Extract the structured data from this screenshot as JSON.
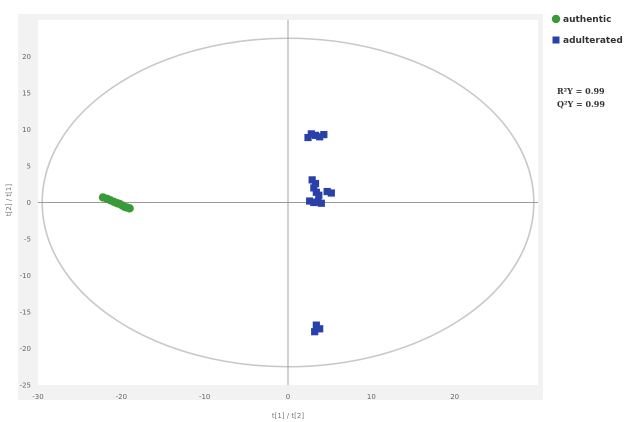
{
  "chart_data": {
    "type": "scatter",
    "title": "",
    "xlabel": "t[1] / t[2]",
    "ylabel": "t[2] / t[1]",
    "xlim": [
      -30,
      30
    ],
    "ylim": [
      -25,
      25
    ],
    "x_ticks": [
      -30,
      -20,
      -10,
      0,
      10,
      20
    ],
    "y_ticks": [
      20,
      15,
      10,
      5,
      0,
      -5,
      -10,
      -15,
      -20,
      -25
    ],
    "grid": false,
    "legend_position": "top-right",
    "hotelling_ellipse": {
      "center": [
        0,
        0
      ],
      "x_radius": 29.5,
      "y_radius": 22.5
    },
    "series": [
      {
        "name": "authentic",
        "marker": "circle",
        "color": "#3a9a3a",
        "points": [
          [
            -22.2,
            0.7
          ],
          [
            -21.7,
            0.5
          ],
          [
            -21.3,
            0.3
          ],
          [
            -20.9,
            0.1
          ],
          [
            -20.5,
            -0.1
          ],
          [
            -20.2,
            -0.2
          ],
          [
            -19.9,
            -0.4
          ],
          [
            -19.6,
            -0.6
          ],
          [
            -19.3,
            -0.7
          ],
          [
            -19.0,
            -0.8
          ]
        ]
      },
      {
        "name": "adulterated",
        "marker": "square",
        "color": "#2840a8",
        "points": [
          [
            2.4,
            8.9
          ],
          [
            2.8,
            9.4
          ],
          [
            3.3,
            9.2
          ],
          [
            3.8,
            9.0
          ],
          [
            4.3,
            9.3
          ],
          [
            2.9,
            3.1
          ],
          [
            3.3,
            2.6
          ],
          [
            3.1,
            2.0
          ],
          [
            3.4,
            1.4
          ],
          [
            3.7,
            1.0
          ],
          [
            4.7,
            1.5
          ],
          [
            5.2,
            1.3
          ],
          [
            2.6,
            0.2
          ],
          [
            3.1,
            0.0
          ],
          [
            3.6,
            0.1
          ],
          [
            4.0,
            -0.1
          ],
          [
            3.4,
            -16.8
          ],
          [
            3.8,
            -17.3
          ],
          [
            3.2,
            -17.7
          ]
        ]
      }
    ],
    "annotations": [
      "R²Y = 0.99",
      "Q²Y = 0.99"
    ]
  },
  "legend": {
    "items": [
      {
        "label": "authentic",
        "color": "#3a9a3a",
        "shape": "circle"
      },
      {
        "label": "adulterated",
        "color": "#2840a8",
        "shape": "square"
      }
    ]
  },
  "stats": {
    "r2y": "R²Y = 0.99",
    "q2y": "Q²Y = 0.99"
  },
  "colors": {
    "plot_background": "#ffffff",
    "outer_background": "#f2f2f2",
    "ellipse": "#c8c8c8",
    "axis": "#999999"
  }
}
